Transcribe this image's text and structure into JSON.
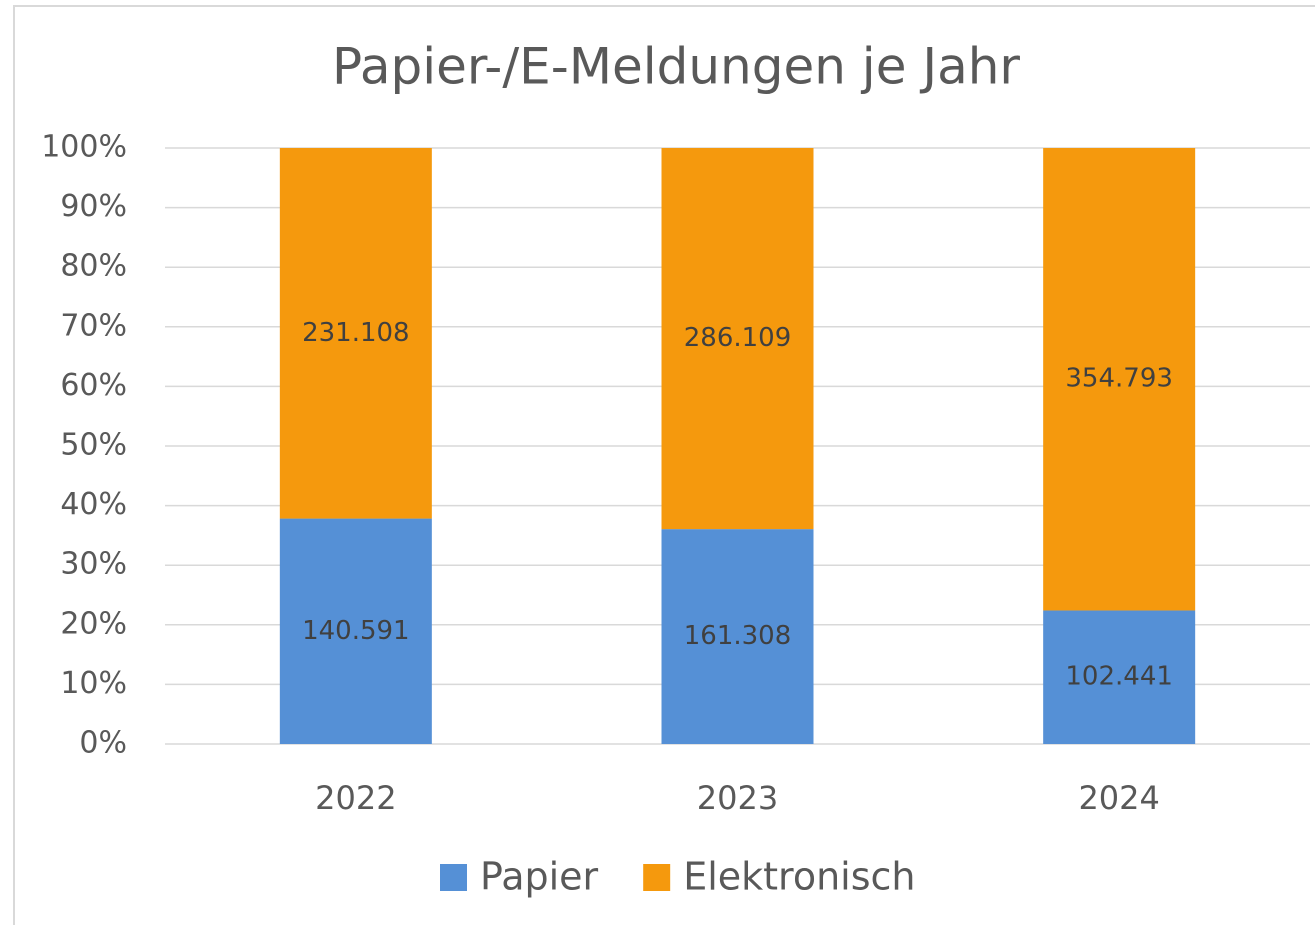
{
  "chart_data": {
    "type": "bar",
    "stacking": "percent",
    "title": "Papier-/E-Meldungen je Jahr",
    "categories": [
      "2022",
      "2023",
      "2024"
    ],
    "series": [
      {
        "name": "Papier",
        "color": "#5590d6",
        "values": [
          140591,
          161308,
          102441
        ],
        "value_labels": [
          "140.591",
          "161.308",
          "102.441"
        ]
      },
      {
        "name": "Elektronisch",
        "color": "#f5990d",
        "values": [
          231108,
          286109,
          354793
        ],
        "value_labels": [
          "231.108",
          "286.109",
          "354.793"
        ]
      }
    ],
    "ylim": [
      0,
      100
    ],
    "yticks": [
      {
        "value": 0,
        "label": "0%"
      },
      {
        "value": 10,
        "label": "10%"
      },
      {
        "value": 20,
        "label": "20%"
      },
      {
        "value": 30,
        "label": "30%"
      },
      {
        "value": 40,
        "label": "40%"
      },
      {
        "value": 50,
        "label": "50%"
      },
      {
        "value": 60,
        "label": "60%"
      },
      {
        "value": 70,
        "label": "70%"
      },
      {
        "value": 80,
        "label": "80%"
      },
      {
        "value": 90,
        "label": "90%"
      },
      {
        "value": 100,
        "label": "100%"
      }
    ],
    "grid": true,
    "legend": "bottom"
  }
}
